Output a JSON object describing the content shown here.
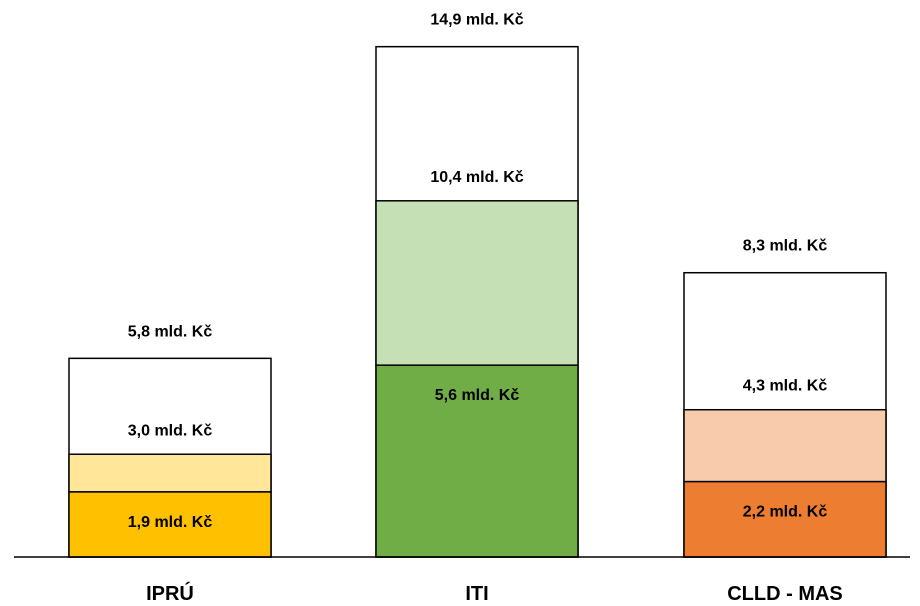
{
  "chart_data": {
    "type": "bar",
    "stacked": true,
    "unit": "mld. Kč",
    "ylim": [
      0,
      15
    ],
    "categories": [
      "IPRÚ",
      "ITI",
      "CLLD - MAS"
    ],
    "values_total": [
      5.8,
      14.9,
      8.3
    ],
    "values_middle": [
      3.0,
      10.4,
      4.3
    ],
    "values_bottom": [
      1.9,
      5.6,
      2.2
    ],
    "labels": {
      "total": [
        "5,8  mld. Kč",
        "14,9  mld. Kč",
        "8,3  mld. Kč"
      ],
      "middle": [
        "3,0  mld. Kč",
        "10,4  mld. Kč",
        "4,3  mld. Kč"
      ],
      "bottom": [
        "1,9  mld. Kč",
        "5,6  mld. Kč",
        "2,2  mld. Kč"
      ]
    },
    "colors": {
      "bottom": [
        "#ffc000",
        "#70ad47",
        "#ed7d31"
      ],
      "middle": [
        "#ffe699",
        "#c5e0b4",
        "#f8cbad"
      ],
      "top": "#ffffff",
      "outline": "#000000"
    },
    "grid": false,
    "legend": "none"
  }
}
